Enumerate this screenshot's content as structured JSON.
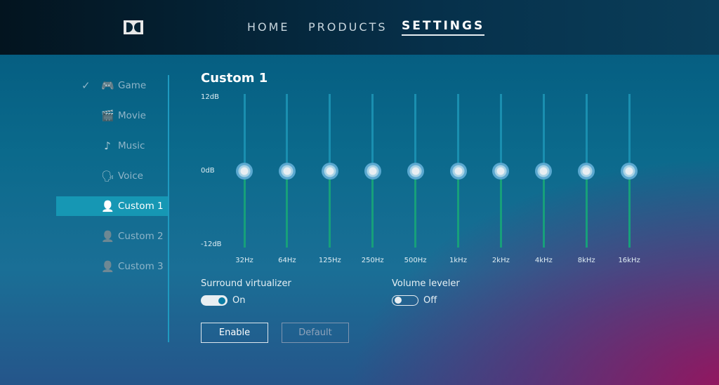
{
  "header": {
    "logo": "Dolby",
    "nav": [
      {
        "label": "HOME",
        "active": false
      },
      {
        "label": "PRODUCTS",
        "active": false
      },
      {
        "label": "SETTINGS",
        "active": true
      }
    ]
  },
  "sidebar": {
    "items": [
      {
        "label": "Game",
        "icon": "gamepad-icon",
        "glyph": "🎮",
        "checked": true,
        "active": false
      },
      {
        "label": "Movie",
        "icon": "clapperboard-icon",
        "glyph": "🎬",
        "checked": false,
        "active": false
      },
      {
        "label": "Music",
        "icon": "music-note-icon",
        "glyph": "♪",
        "checked": false,
        "active": false
      },
      {
        "label": "Voice",
        "icon": "voice-icon",
        "glyph": "🗣",
        "checked": false,
        "active": false
      },
      {
        "label": "Custom 1",
        "icon": "user-icon",
        "glyph": "👤",
        "checked": false,
        "active": true
      },
      {
        "label": "Custom 2",
        "icon": "user-icon",
        "glyph": "👤",
        "checked": false,
        "active": false
      },
      {
        "label": "Custom 3",
        "icon": "user-icon",
        "glyph": "👤",
        "checked": false,
        "active": false
      }
    ],
    "check_glyph": "✓"
  },
  "equalizer": {
    "title": "Custom 1",
    "max_label": "12dB",
    "mid_label": "0dB",
    "min_label": "-12dB",
    "range_db": [
      -12,
      12
    ],
    "bands": [
      {
        "freq": "32Hz",
        "gain": 0
      },
      {
        "freq": "64Hz",
        "gain": 0
      },
      {
        "freq": "125Hz",
        "gain": 0
      },
      {
        "freq": "250Hz",
        "gain": 0
      },
      {
        "freq": "500Hz",
        "gain": 0
      },
      {
        "freq": "1kHz",
        "gain": 0
      },
      {
        "freq": "2kHz",
        "gain": 0
      },
      {
        "freq": "4kHz",
        "gain": 0
      },
      {
        "freq": "8kHz",
        "gain": 0
      },
      {
        "freq": "16kHz",
        "gain": 0
      }
    ],
    "colors": {
      "upper_track": "#1a8fb0",
      "lower_track": "#17a07a"
    }
  },
  "options": {
    "surround": {
      "label": "Surround virtualizer",
      "state": "On"
    },
    "leveler": {
      "label": "Volume leveler",
      "state": "Off"
    }
  },
  "buttons": {
    "enable": "Enable",
    "default": "Default"
  }
}
